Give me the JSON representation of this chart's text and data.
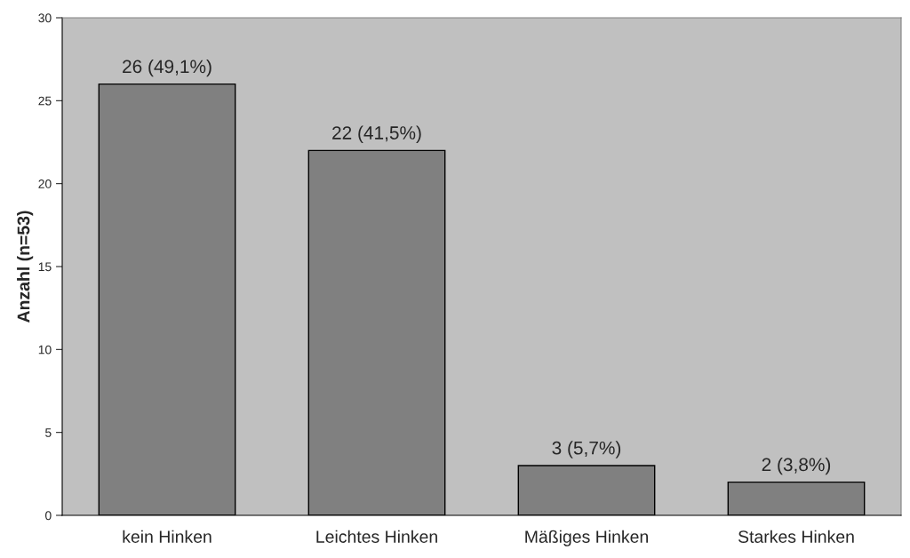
{
  "chart_data": {
    "type": "bar",
    "ylabel": "Anzahl (n=53)",
    "categories": [
      "kein Hinken",
      "Leichtes Hinken",
      "Mäßiges Hinken",
      "Starkes Hinken"
    ],
    "values": [
      26,
      22,
      3,
      2
    ],
    "value_labels": [
      "26 (49,1%)",
      "22 (41,5%)",
      "3 (5,7%)",
      "2 (3,8%)"
    ],
    "color": "#808080",
    "ylim": [
      0,
      30
    ],
    "yticks": [
      0,
      5,
      10,
      15,
      20,
      25,
      30
    ],
    "grid": false
  }
}
